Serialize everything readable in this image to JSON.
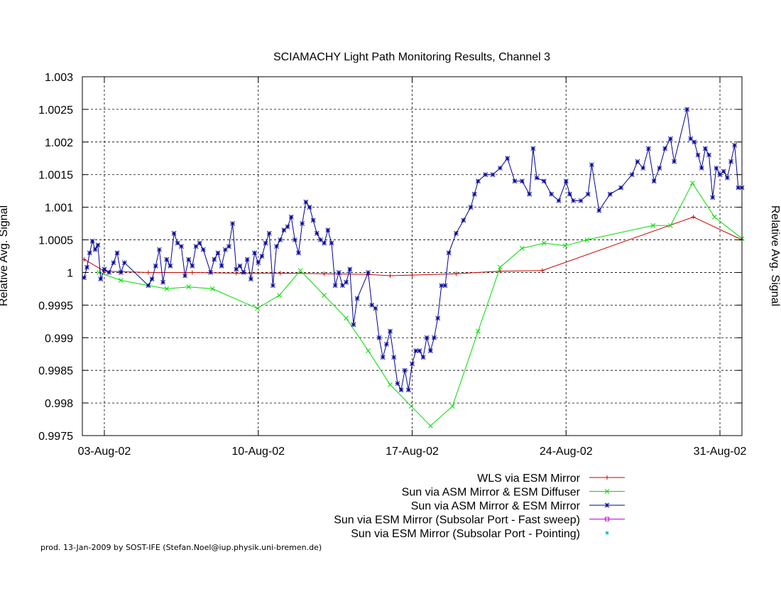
{
  "chart_data": {
    "type": "line",
    "title": "SCIAMACHY Light Path Monitoring Results, Channel 3",
    "ylabel": "Relative Avg. Signal",
    "y2label": "Relative Avg. Signal",
    "xlabel": "",
    "ylim": [
      0.9975,
      1.003
    ],
    "xlim": [
      "2002-08-02",
      "2002-09-01"
    ],
    "yticks": [
      0.9975,
      0.998,
      0.9985,
      0.999,
      0.9995,
      1,
      1.0005,
      1.001,
      1.0015,
      1.002,
      1.0025,
      1.003
    ],
    "ytick_labels": [
      "0.9975",
      "0.998",
      "0.9985",
      "0.999",
      "0.9995",
      "1",
      "1.0005",
      "1.001",
      "1.0015",
      "1.002",
      "1.0025",
      "1.003"
    ],
    "xticks": [
      "2002-08-03",
      "2002-08-10",
      "2002-08-17",
      "2002-08-24",
      "2002-08-31"
    ],
    "xtick_labels": [
      "03-Aug-02",
      "10-Aug-02",
      "17-Aug-02",
      "24-Aug-02",
      "31-Aug-02"
    ],
    "grid": true,
    "legend_position": "bottom-right",
    "series": [
      {
        "name": "WLS via ESM Mirror",
        "color": "#cc0000",
        "marker": "plus",
        "points": [
          [
            "2002-08-02T02:00",
            1.0002
          ],
          [
            "2002-08-03T00:00",
            1.00002
          ],
          [
            "2002-08-05T00:00",
            1.0
          ],
          [
            "2002-08-07T00:00",
            1.0
          ],
          [
            "2002-08-09T00:00",
            0.99999
          ],
          [
            "2002-08-11T00:00",
            0.99999
          ],
          [
            "2002-08-13T00:00",
            0.99998
          ],
          [
            "2002-08-15T00:00",
            0.99997
          ],
          [
            "2002-08-16T00:00",
            0.99995
          ],
          [
            "2002-08-17T00:00",
            0.99996
          ],
          [
            "2002-08-19T00:00",
            0.99998
          ],
          [
            "2002-08-21T00:00",
            1.00002
          ],
          [
            "2002-08-22T22:00",
            1.00003
          ],
          [
            "2002-08-29T19:00",
            1.00085
          ],
          [
            "2002-09-01T00:00",
            1.0005
          ]
        ]
      },
      {
        "name": "Sun via ASM Mirror & ESM Diffuser",
        "color": "#00dd00",
        "marker": "cross",
        "points": [
          [
            "2002-08-02T18:00",
            1.0
          ],
          [
            "2002-08-03T18:00",
            0.99988
          ],
          [
            "2002-08-05T00:00",
            0.9998
          ],
          [
            "2002-08-05T20:00",
            0.99975
          ],
          [
            "2002-08-06T20:00",
            0.99978
          ],
          [
            "2002-08-07T22:00",
            0.99975
          ],
          [
            "2002-08-09T23:00",
            0.99945
          ],
          [
            "2002-08-10T23:00",
            0.99965
          ],
          [
            "2002-08-11T22:00",
            1.00003
          ],
          [
            "2002-08-13T00:00",
            0.99965
          ],
          [
            "2002-08-14T00:00",
            0.9993
          ],
          [
            "2002-08-15T00:00",
            0.9988
          ],
          [
            "2002-08-16T00:00",
            0.99828
          ],
          [
            "2002-08-16T23:00",
            0.99795
          ],
          [
            "2002-08-17T20:00",
            0.99765
          ],
          [
            "2002-08-18T20:00",
            0.99795
          ],
          [
            "2002-08-20T00:00",
            0.9991
          ],
          [
            "2002-08-21T00:00",
            1.00008
          ],
          [
            "2002-08-22T00:00",
            1.00037
          ],
          [
            "2002-08-23T00:00",
            1.00045
          ],
          [
            "2002-08-23T23:00",
            1.00041
          ],
          [
            "2002-08-24T23:00",
            1.0005
          ],
          [
            "2002-08-27T23:00",
            1.00072
          ],
          [
            "2002-08-28T18:00",
            1.00072
          ],
          [
            "2002-08-29T18:00",
            1.00137
          ],
          [
            "2002-08-30T18:00",
            1.00085
          ],
          [
            "2002-09-01T00:00",
            1.00052
          ]
        ]
      },
      {
        "name": "Sun via ASM Mirror & ESM Mirror",
        "color": "#000099",
        "marker": "star",
        "points": [
          [
            "2002-08-02T02:00",
            0.99992
          ],
          [
            "2002-08-02T05:00",
            1.00008
          ],
          [
            "2002-08-02T08:00",
            1.0003
          ],
          [
            "2002-08-02T11:00",
            1.00048
          ],
          [
            "2002-08-02T14:00",
            1.00035
          ],
          [
            "2002-08-02T17:00",
            1.00042
          ],
          [
            "2002-08-02T20:00",
            0.9999
          ],
          [
            "2002-08-03T00:00",
            1.00005
          ],
          [
            "2002-08-03T05:00",
            1.0
          ],
          [
            "2002-08-03T10:00",
            1.00015
          ],
          [
            "2002-08-03T14:00",
            1.0003
          ],
          [
            "2002-08-03T18:00",
            1.0
          ],
          [
            "2002-08-03T22:00",
            1.00015
          ],
          [
            "2002-08-05T00:00",
            0.9998
          ],
          [
            "2002-08-05T04:00",
            0.9999
          ],
          [
            "2002-08-05T08:00",
            1.0001
          ],
          [
            "2002-08-05T12:00",
            1.00035
          ],
          [
            "2002-08-05T16:00",
            0.99985
          ],
          [
            "2002-08-05T20:00",
            1.0002
          ],
          [
            "2002-08-06T00:00",
            1.0001
          ],
          [
            "2002-08-06T04:00",
            1.0006
          ],
          [
            "2002-08-06T08:00",
            1.00045
          ],
          [
            "2002-08-06T12:00",
            1.0004
          ],
          [
            "2002-08-06T16:00",
            0.99995
          ],
          [
            "2002-08-06T20:00",
            1.0002
          ],
          [
            "2002-08-07T00:00",
            1.0001
          ],
          [
            "2002-08-07T04:00",
            1.0004
          ],
          [
            "2002-08-07T08:00",
            1.00045
          ],
          [
            "2002-08-07T12:00",
            1.00035
          ],
          [
            "2002-08-07T20:00",
            1.0
          ],
          [
            "2002-08-08T00:00",
            1.0002
          ],
          [
            "2002-08-08T04:00",
            1.0003
          ],
          [
            "2002-08-08T08:00",
            1.0001
          ],
          [
            "2002-08-08T12:00",
            1.00035
          ],
          [
            "2002-08-08T16:00",
            1.0004
          ],
          [
            "2002-08-08T20:00",
            1.00075
          ],
          [
            "2002-08-09T00:00",
            1.00005
          ],
          [
            "2002-08-09T04:00",
            1.0001
          ],
          [
            "2002-08-09T08:00",
            1.0
          ],
          [
            "2002-08-09T12:00",
            1.0002
          ],
          [
            "2002-08-09T16:00",
            0.9999
          ],
          [
            "2002-08-09T20:00",
            1.0003
          ],
          [
            "2002-08-10T00:00",
            1.00015
          ],
          [
            "2002-08-10T04:00",
            1.00025
          ],
          [
            "2002-08-10T08:00",
            1.00045
          ],
          [
            "2002-08-10T12:00",
            1.0006
          ],
          [
            "2002-08-10T16:00",
            0.9998
          ],
          [
            "2002-08-10T20:00",
            1.0004
          ],
          [
            "2002-08-11T00:00",
            1.0005
          ],
          [
            "2002-08-11T04:00",
            1.00065
          ],
          [
            "2002-08-11T08:00",
            1.0007
          ],
          [
            "2002-08-11T12:00",
            1.00085
          ],
          [
            "2002-08-11T16:00",
            1.0005
          ],
          [
            "2002-08-11T20:00",
            1.0003
          ],
          [
            "2002-08-12T00:00",
            1.00075
          ],
          [
            "2002-08-12T04:00",
            1.00108
          ],
          [
            "2002-08-12T08:00",
            1.001
          ],
          [
            "2002-08-12T12:00",
            1.0008
          ],
          [
            "2002-08-12T16:00",
            1.0006
          ],
          [
            "2002-08-12T20:00",
            1.0005
          ],
          [
            "2002-08-13T00:00",
            1.00045
          ],
          [
            "2002-08-13T04:00",
            1.00065
          ],
          [
            "2002-08-13T08:00",
            1.00045
          ],
          [
            "2002-08-13T12:00",
            0.9998
          ],
          [
            "2002-08-13T16:00",
            1.0
          ],
          [
            "2002-08-13T20:00",
            0.9998
          ],
          [
            "2002-08-14T00:00",
            0.99985
          ],
          [
            "2002-08-14T04:00",
            1.00005
          ],
          [
            "2002-08-14T08:00",
            0.9992
          ],
          [
            "2002-08-14T12:00",
            0.9996
          ],
          [
            "2002-08-15T00:00",
            1.0
          ],
          [
            "2002-08-15T04:00",
            0.9995
          ],
          [
            "2002-08-15T08:00",
            0.99945
          ],
          [
            "2002-08-15T12:00",
            0.999
          ],
          [
            "2002-08-15T16:00",
            0.9987
          ],
          [
            "2002-08-15T20:00",
            0.9989
          ],
          [
            "2002-08-16T00:00",
            0.9991
          ],
          [
            "2002-08-16T04:00",
            0.9987
          ],
          [
            "2002-08-16T08:00",
            0.9983
          ],
          [
            "2002-08-16T12:00",
            0.9982
          ],
          [
            "2002-08-16T16:00",
            0.9985
          ],
          [
            "2002-08-16T20:00",
            0.9982
          ],
          [
            "2002-08-17T00:00",
            0.9986
          ],
          [
            "2002-08-17T04:00",
            0.9988
          ],
          [
            "2002-08-17T08:00",
            0.9988
          ],
          [
            "2002-08-17T12:00",
            0.9987
          ],
          [
            "2002-08-17T16:00",
            0.999
          ],
          [
            "2002-08-17T20:00",
            0.9988
          ],
          [
            "2002-08-18T00:00",
            0.999
          ],
          [
            "2002-08-18T04:00",
            0.9993
          ],
          [
            "2002-08-18T08:00",
            0.9998
          ],
          [
            "2002-08-18T12:00",
            0.9998
          ],
          [
            "2002-08-18T16:00",
            1.0003
          ],
          [
            "2002-08-19T00:00",
            1.0006
          ],
          [
            "2002-08-19T08:00",
            1.0008
          ],
          [
            "2002-08-19T16:00",
            1.001
          ],
          [
            "2002-08-19T20:00",
            1.0012
          ],
          [
            "2002-08-20T00:00",
            1.0014
          ],
          [
            "2002-08-20T08:00",
            1.0015
          ],
          [
            "2002-08-20T16:00",
            1.0015
          ],
          [
            "2002-08-21T00:00",
            1.0016
          ],
          [
            "2002-08-21T08:00",
            1.00175
          ],
          [
            "2002-08-21T16:00",
            1.0014
          ],
          [
            "2002-08-22T00:00",
            1.0014
          ],
          [
            "2002-08-22T08:00",
            1.0012
          ],
          [
            "2002-08-22T12:00",
            1.0019
          ],
          [
            "2002-08-22T16:00",
            1.00145
          ],
          [
            "2002-08-23T00:00",
            1.0014
          ],
          [
            "2002-08-23T08:00",
            1.0012
          ],
          [
            "2002-08-23T16:00",
            1.0011
          ],
          [
            "2002-08-24T00:00",
            1.0014
          ],
          [
            "2002-08-24T04:00",
            1.0012
          ],
          [
            "2002-08-24T08:00",
            1.0011
          ],
          [
            "2002-08-24T16:00",
            1.0011
          ],
          [
            "2002-08-25T00:00",
            1.0012
          ],
          [
            "2002-08-25T04:00",
            1.00165
          ],
          [
            "2002-08-25T12:00",
            1.00095
          ],
          [
            "2002-08-26T00:00",
            1.0012
          ],
          [
            "2002-08-26T12:00",
            1.0013
          ],
          [
            "2002-08-27T00:00",
            1.0015
          ],
          [
            "2002-08-27T06:00",
            1.0017
          ],
          [
            "2002-08-27T12:00",
            1.0016
          ],
          [
            "2002-08-27T18:00",
            1.0019
          ],
          [
            "2002-08-28T00:00",
            1.0014
          ],
          [
            "2002-08-28T06:00",
            1.0016
          ],
          [
            "2002-08-28T12:00",
            1.0019
          ],
          [
            "2002-08-28T18:00",
            1.00205
          ],
          [
            "2002-08-28T22:00",
            1.0017
          ],
          [
            "2002-08-29T12:00",
            1.0025
          ],
          [
            "2002-08-29T16:00",
            1.00205
          ],
          [
            "2002-08-29T20:00",
            1.002
          ],
          [
            "2002-08-30T00:00",
            1.0018
          ],
          [
            "2002-08-30T04:00",
            1.0016
          ],
          [
            "2002-08-30T08:00",
            1.0019
          ],
          [
            "2002-08-30T12:00",
            1.0018
          ],
          [
            "2002-08-30T16:00",
            1.00115
          ],
          [
            "2002-08-30T20:00",
            1.0016
          ],
          [
            "2002-08-31T00:00",
            1.0015
          ],
          [
            "2002-08-31T04:00",
            1.00155
          ],
          [
            "2002-08-31T08:00",
            1.00145
          ],
          [
            "2002-08-31T12:00",
            1.0017
          ],
          [
            "2002-08-31T16:00",
            1.00195
          ],
          [
            "2002-08-31T20:00",
            1.0013
          ],
          [
            "2002-09-01T00:00",
            1.0013
          ]
        ]
      },
      {
        "name": "Sun via ESM Mirror (Subsolar Port - Fast sweep)",
        "color": "#cc00cc",
        "marker": "square",
        "points": []
      },
      {
        "name": "Sun via ESM Mirror (Subsolar Port - Pointing)",
        "color": "#00cccc",
        "marker": "dot",
        "points": []
      }
    ]
  },
  "footer": "prod. 13-Jan-2009 by SOST-IFE (Stefan.Noel@iup.physik.uni-bremen.de)"
}
